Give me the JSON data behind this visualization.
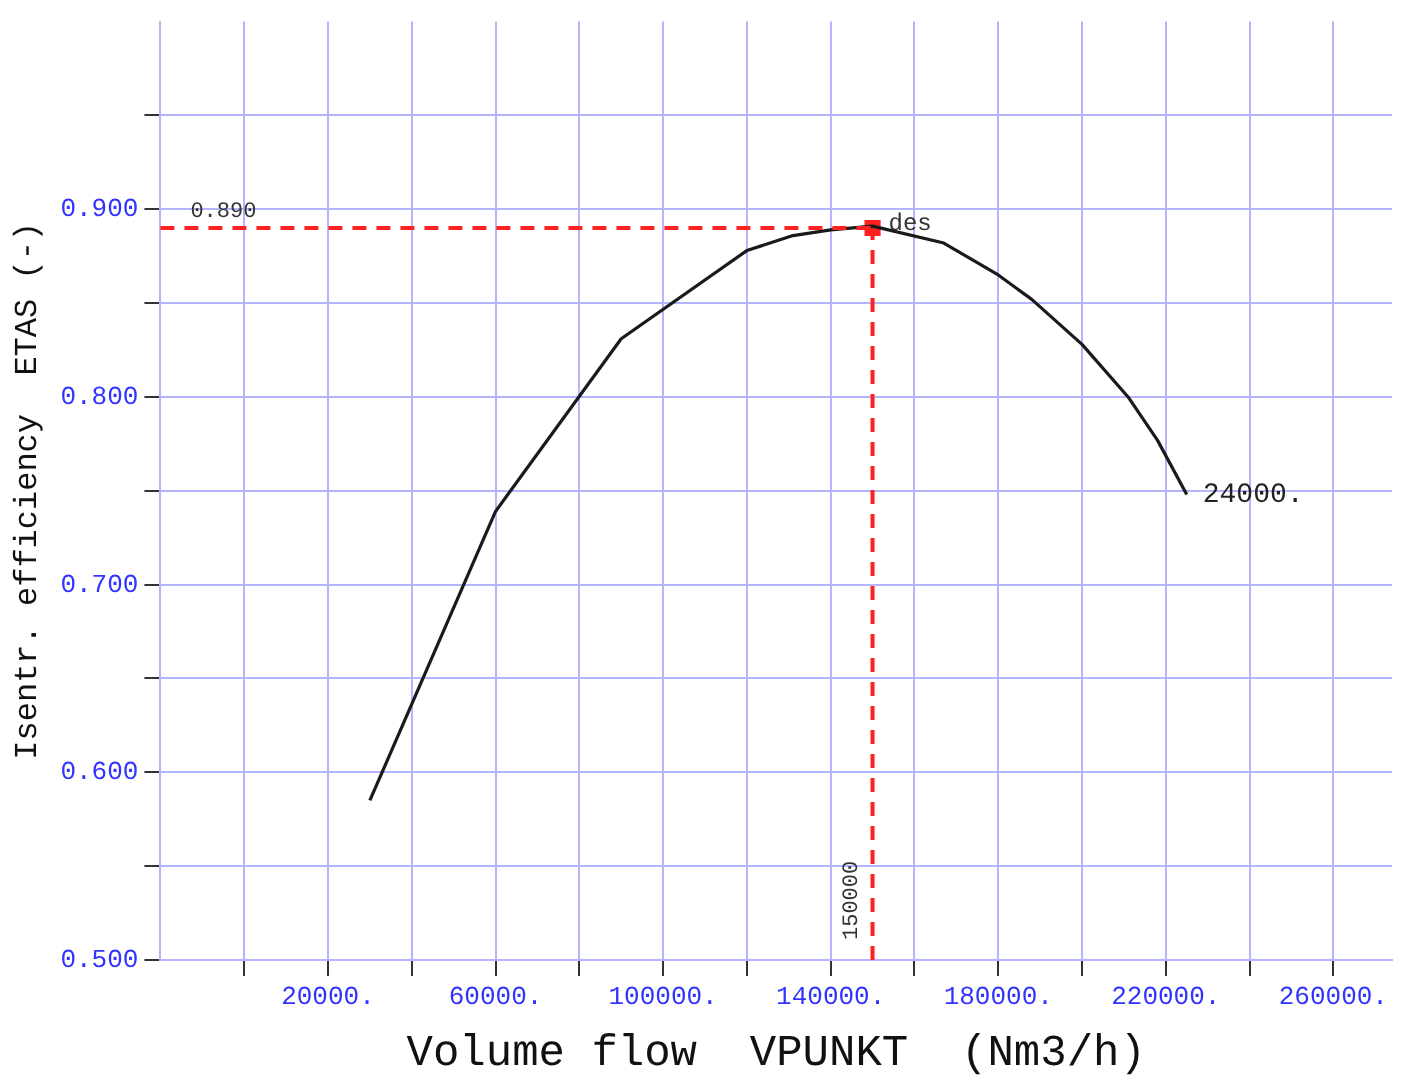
{
  "chart_data": {
    "type": "line",
    "xlabel": "Volume flow  VPUNKT  (Nm3/h)",
    "ylabel": "Isentr. efficiency  ETAS (-)",
    "xlim": [
      -20000,
      274000
    ],
    "ylim": [
      0.5,
      1.0
    ],
    "xticks": [
      {
        "value": 0,
        "label": null
      },
      {
        "value": 20000,
        "label": "20000."
      },
      {
        "value": 40000,
        "label": null
      },
      {
        "value": 60000,
        "label": "60000."
      },
      {
        "value": 80000,
        "label": null
      },
      {
        "value": 100000,
        "label": "100000."
      },
      {
        "value": 120000,
        "label": null
      },
      {
        "value": 140000,
        "label": "140000."
      },
      {
        "value": 160000,
        "label": null
      },
      {
        "value": 180000,
        "label": "180000."
      },
      {
        "value": 200000,
        "label": null
      },
      {
        "value": 220000,
        "label": "220000."
      },
      {
        "value": 240000,
        "label": null
      },
      {
        "value": 260000,
        "label": "260000."
      }
    ],
    "yticks": [
      {
        "value": 0.5,
        "label": "0.500"
      },
      {
        "value": 0.55,
        "label": null
      },
      {
        "value": 0.6,
        "label": "0.600"
      },
      {
        "value": 0.65,
        "label": null
      },
      {
        "value": 0.7,
        "label": "0.700"
      },
      {
        "value": 0.75,
        "label": null
      },
      {
        "value": 0.8,
        "label": "0.800"
      },
      {
        "value": 0.85,
        "label": null
      },
      {
        "value": 0.9,
        "label": "0.900"
      },
      {
        "value": 0.95,
        "label": null
      }
    ],
    "grid": true,
    "legend": false,
    "series": [
      {
        "type": "line",
        "color": "#1a1a1a",
        "marker": "none",
        "line_style": "solid",
        "x": [
          30000,
          60000,
          90000,
          120000,
          131000,
          140000,
          150000,
          167000,
          180000,
          188000,
          200000,
          211000,
          218000,
          225000
        ],
        "values": [
          0.585,
          0.739,
          0.831,
          0.878,
          0.886,
          0.889,
          0.891,
          0.882,
          0.865,
          0.852,
          0.828,
          0.8,
          0.777,
          0.748
        ]
      },
      {
        "type": "scatter",
        "name": "des",
        "color": "#ff2020",
        "marker": "square",
        "x": [
          150000
        ],
        "values": [
          0.89
        ]
      }
    ],
    "ref_lines": [
      {
        "axis": "y",
        "value": 0.89,
        "label": "0.890",
        "color": "#ff2020",
        "line_style": "dashed"
      },
      {
        "axis": "x",
        "value": 150000,
        "label": "150000",
        "color": "#ff2020",
        "line_style": "dashed"
      }
    ],
    "annotations": [
      "24000."
    ]
  }
}
